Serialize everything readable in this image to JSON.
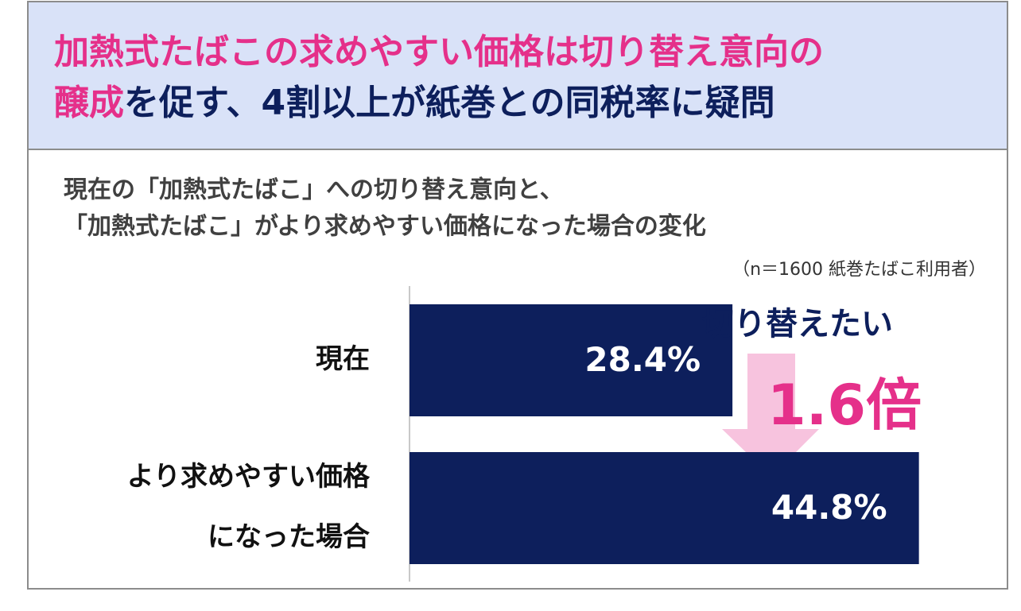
{
  "chart_data": {
    "type": "bar",
    "orientation": "horizontal",
    "title": [
      {
        "text": "加熱式たばこの求めやすい価格は切り替え意向の",
        "color": "#e5308a"
      },
      {
        "text": "醸成",
        "color": "#e5308a"
      },
      {
        "text": "を促す、4割以上が紙巻との同税率に疑問",
        "color": "#0d1f5c"
      }
    ],
    "subtitle": [
      "現在の「加熱式たばこ」への切り替え意向と、",
      "「加熱式たばこ」がより求めやすい価格になった場合の変化"
    ],
    "note": "（n＝1600 紙巻たばこ利用者）",
    "categories": [
      [
        "現在"
      ],
      [
        "より求めやすい価格",
        "になった場合"
      ]
    ],
    "values": [
      28.4,
      44.8
    ],
    "value_labels": [
      "28.4%",
      "44.8%"
    ],
    "color": "#0d1f5c",
    "xlim": [
      0,
      50
    ],
    "annotations": [
      {
        "text": "切り替えたい",
        "color": "#0d1f5c"
      },
      {
        "text": "1.6倍",
        "color": "#e5308a"
      }
    ]
  }
}
